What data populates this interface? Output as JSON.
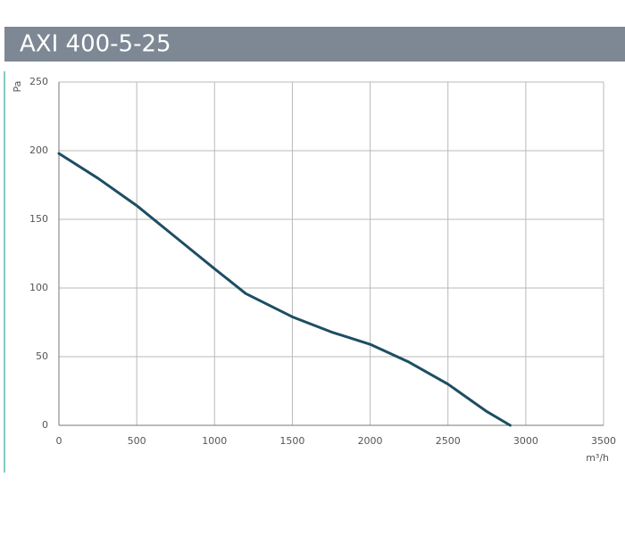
{
  "chart_data": {
    "type": "line",
    "title": "AXI 400-5-25",
    "x_label": "m³/h",
    "y_label": "Pa",
    "x": [
      0,
      250,
      500,
      750,
      1000,
      1200,
      1500,
      1750,
      2000,
      2250,
      2500,
      2750,
      2900
    ],
    "series": [
      {
        "name": "AXI 400-5-25",
        "color": "#1d4e63",
        "values": [
          198,
          180,
          160,
          137,
          114,
          96,
          79,
          68,
          59,
          46,
          30,
          10,
          0
        ]
      }
    ],
    "xlim": [
      0,
      3500
    ],
    "xticks": [
      0,
      500,
      1000,
      1500,
      2000,
      2500,
      3000,
      3500
    ],
    "ylim": [
      0,
      250
    ],
    "yticks": [
      0,
      50,
      100,
      150,
      200,
      250
    ],
    "grid": true
  }
}
